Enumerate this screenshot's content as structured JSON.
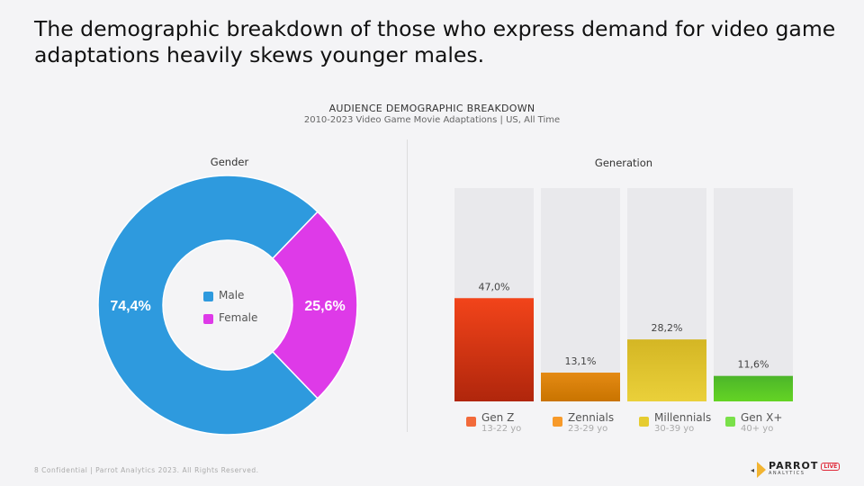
{
  "title": "The demographic breakdown of those who express demand for video game adaptations heavily skews younger males.",
  "chart_title": "AUDIENCE DEMOGRAPHIC BREAKDOWN",
  "chart_subtitle": "2010-2023 Video Game Movie Adaptations | US, All Time",
  "footer": "8  Confidential  |  Parrot Analytics 2023. All Rights Reserved.",
  "logo": {
    "name": "PARROT",
    "sub": "ANALYTICS",
    "badge": "LIVE"
  },
  "chart_data": [
    {
      "type": "pie",
      "title": "Gender",
      "donut": true,
      "slices": [
        {
          "name": "Male",
          "value": 74.4,
          "label": "74,4%",
          "color": "#2e9ade"
        },
        {
          "name": "Female",
          "value": 25.6,
          "label": "25,6%",
          "color": "#de3ae8"
        }
      ]
    },
    {
      "type": "bar",
      "title": "Generation",
      "ylim": [
        0,
        100
      ],
      "categories": [
        {
          "name": "Gen Z",
          "range": "13-22 yo",
          "value": 47.0,
          "label": "47,0%",
          "color": "#f26a3a",
          "top": "#f2441a",
          "bottom": "#b0260c"
        },
        {
          "name": "Zennials",
          "range": "23-29 yo",
          "value": 13.1,
          "label": "13,1%",
          "color": "#f79a2a",
          "top": "#e48a14",
          "bottom": "#c97400"
        },
        {
          "name": "Millennials",
          "range": "30-39 yo",
          "value": 28.2,
          "label": "28,2%",
          "color": "#e6cc30",
          "top": "#d4b624",
          "bottom": "#ead03a"
        },
        {
          "name": "Gen X+",
          "range": "40+ yo",
          "value": 11.6,
          "label": "11,6%",
          "color": "#7ae04a",
          "top": "#4cb52a",
          "bottom": "#64d424"
        }
      ]
    }
  ]
}
